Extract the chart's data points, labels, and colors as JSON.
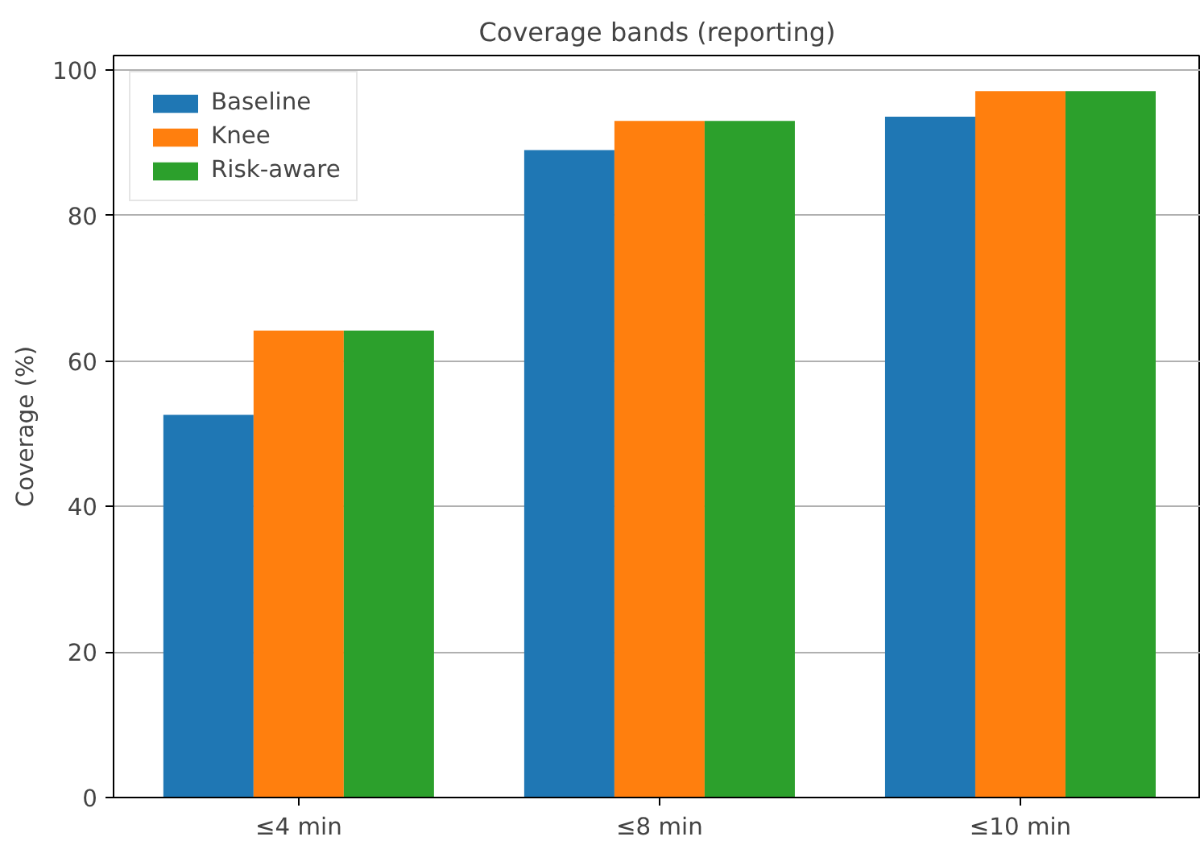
{
  "chart_data": {
    "type": "bar",
    "title": "Coverage bands (reporting)",
    "ylabel": "Coverage (%)",
    "categories": [
      "≤4 min",
      "≤8 min",
      "≤10 min"
    ],
    "series": [
      {
        "name": "Baseline",
        "color": "#1f77b4",
        "values": [
          52.6,
          89.0,
          93.6
        ]
      },
      {
        "name": "Knee",
        "color": "#ff7f0e",
        "values": [
          64.2,
          93.0,
          97.1
        ]
      },
      {
        "name": "Risk-aware",
        "color": "#2ca02c",
        "values": [
          64.2,
          93.0,
          97.1
        ]
      }
    ],
    "ylim": [
      0,
      102
    ],
    "yticks": [
      0,
      20,
      40,
      60,
      80,
      100
    ],
    "grid": "y",
    "legend": "top left"
  }
}
